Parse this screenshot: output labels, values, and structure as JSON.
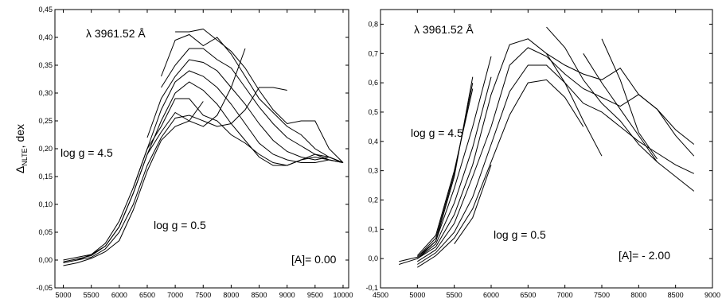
{
  "chart_data": [
    {
      "type": "line",
      "ylabel_main": "Δ",
      "ylabel_sub": "NLTE",
      "ylabel_rest": ", dex",
      "xlim": [
        4850,
        10100
      ],
      "ylim": [
        -0.05,
        0.45
      ],
      "x_ticks": [
        5000,
        5500,
        6000,
        6500,
        7000,
        7500,
        8000,
        8500,
        9000,
        9500,
        10000
      ],
      "x_tick_labels": [
        "5000",
        "5500",
        "6000",
        "6500",
        "7000",
        "7500",
        "8000",
        "8500",
        "9000",
        "9500",
        "10000"
      ],
      "y_ticks": [
        -0.05,
        0.0,
        0.05,
        0.1,
        0.15,
        0.2,
        0.25,
        0.3,
        0.35,
        0.4,
        0.45
      ],
      "y_tick_labels": [
        "-0,05",
        "0,00",
        "0,05",
        "0,10",
        "0,15",
        "0,20",
        "0,25",
        "0,30",
        "0,35",
        "0,40",
        "0,45"
      ],
      "annotations": {
        "line": "λ 3961.52 Å",
        "logg_high": "log g  = 4.5",
        "logg_low": "log g  = 0.5",
        "metallicity": "[A]= 0.00"
      },
      "series": [
        {
          "x": [
            5000,
            5250,
            5500,
            5750,
            6000,
            6250,
            6500,
            6750,
            7000,
            7250,
            7500,
            7750,
            8000,
            8250
          ],
          "y": [
            -0.01,
            -0.005,
            0.003,
            0.015,
            0.035,
            0.09,
            0.16,
            0.215,
            0.24,
            0.25,
            0.24,
            0.26,
            0.31,
            0.38
          ]
        },
        {
          "x": [
            5000,
            5250,
            5500,
            5750,
            6000,
            6250,
            6500,
            6750,
            7000,
            7250,
            7500,
            7750,
            8000,
            8250,
            8500,
            8750,
            9000
          ],
          "y": [
            -0.005,
            0.0,
            0.005,
            0.02,
            0.05,
            0.1,
            0.17,
            0.22,
            0.255,
            0.26,
            0.25,
            0.24,
            0.245,
            0.27,
            0.31,
            0.31,
            0.305
          ]
        },
        {
          "x": [
            5000,
            5250,
            5500,
            5750,
            6000,
            6250,
            6500,
            6750,
            7000,
            7250,
            7500
          ],
          "y": [
            -0.003,
            0.002,
            0.008,
            0.025,
            0.06,
            0.12,
            0.19,
            0.23,
            0.265,
            0.25,
            0.285
          ]
        },
        {
          "x": [
            5000,
            5250,
            5500,
            5750,
            6000,
            6250,
            6500,
            6750,
            7000,
            7250,
            7500,
            7750,
            8000,
            8250,
            8500,
            8750,
            9000,
            9250,
            9500,
            9750,
            10000
          ],
          "y": [
            0.0,
            0.005,
            0.01,
            0.03,
            0.07,
            0.13,
            0.2,
            0.24,
            0.29,
            0.29,
            0.26,
            0.25,
            0.225,
            0.21,
            0.19,
            0.175,
            0.17,
            0.18,
            0.185,
            0.18,
            0.175
          ]
        },
        {
          "x": [
            5250,
            5500,
            5750,
            6000,
            6250,
            6500,
            6750,
            7000,
            7250,
            7500,
            7750,
            8000,
            8250,
            8500,
            8750,
            9000,
            9250,
            9500,
            9750,
            10000
          ],
          "y": [
            0.0,
            0.01,
            0.025,
            0.06,
            0.12,
            0.19,
            0.25,
            0.3,
            0.32,
            0.305,
            0.28,
            0.245,
            0.215,
            0.185,
            0.17,
            0.17,
            0.18,
            0.19,
            0.185,
            0.175
          ]
        },
        {
          "x": [
            6250,
            6500,
            6750,
            7000,
            7250,
            7500,
            7750,
            8000,
            8250,
            8500,
            8750,
            9000,
            9250,
            9500,
            9750,
            10000
          ],
          "y": [
            0.13,
            0.2,
            0.27,
            0.32,
            0.34,
            0.33,
            0.31,
            0.28,
            0.245,
            0.21,
            0.19,
            0.18,
            0.175,
            0.175,
            0.18,
            0.175
          ]
        },
        {
          "x": [
            6500,
            6750,
            7000,
            7250,
            7500,
            7750,
            8000,
            8250,
            8500,
            8750,
            9000,
            9250,
            9500,
            9750,
            10000
          ],
          "y": [
            0.22,
            0.29,
            0.33,
            0.36,
            0.355,
            0.34,
            0.31,
            0.28,
            0.245,
            0.215,
            0.195,
            0.185,
            0.18,
            0.185,
            0.175
          ]
        },
        {
          "x": [
            6750,
            7000,
            7250,
            7500,
            7750,
            8000,
            8250,
            8500,
            8750,
            9000,
            9250,
            9500,
            9750,
            10000
          ],
          "y": [
            0.31,
            0.35,
            0.38,
            0.38,
            0.36,
            0.345,
            0.31,
            0.275,
            0.245,
            0.22,
            0.205,
            0.19,
            0.18,
            0.175
          ]
        },
        {
          "x": [
            6750,
            7000,
            7250,
            7500,
            7750,
            8000,
            8250,
            8500,
            8750,
            9000,
            9250,
            9500,
            9750,
            10000
          ],
          "y": [
            0.33,
            0.395,
            0.405,
            0.385,
            0.4,
            0.37,
            0.33,
            0.29,
            0.265,
            0.24,
            0.225,
            0.2,
            0.185,
            0.175
          ]
        },
        {
          "x": [
            7000,
            7250,
            7500,
            7750,
            8000,
            8250,
            8500,
            8750,
            9000,
            9250,
            9500,
            9750,
            10000
          ],
          "y": [
            0.41,
            0.41,
            0.415,
            0.395,
            0.375,
            0.345,
            0.305,
            0.27,
            0.245,
            0.25,
            0.25,
            0.2,
            0.175
          ]
        }
      ]
    },
    {
      "type": "line",
      "xlim": [
        4500,
        9000
      ],
      "ylim": [
        -0.1,
        0.85
      ],
      "x_ticks": [
        4500,
        5000,
        5500,
        6000,
        6500,
        7000,
        7500,
        8000,
        8500,
        9000
      ],
      "x_tick_labels": [
        "4500",
        "5000",
        "5500",
        "6000",
        "6500",
        "7000",
        "7500",
        "8000",
        "8500",
        "9000"
      ],
      "y_ticks": [
        -0.1,
        0.0,
        0.1,
        0.2,
        0.3,
        0.4,
        0.5,
        0.6,
        0.7,
        0.8
      ],
      "y_tick_labels": [
        "-0,1",
        "0,0",
        "0,1",
        "0,2",
        "0,3",
        "0,4",
        "0,5",
        "0,6",
        "0,7",
        "0,8"
      ],
      "annotations": {
        "line": "λ 3961.52 Å",
        "logg_high": "log g  = 4.5",
        "logg_low": "log g  = 0.5",
        "metallicity": "[A]= - 2.00"
      },
      "series": [
        {
          "x": [
            4750,
            5000,
            5250,
            5500,
            5750
          ],
          "y": [
            -0.02,
            0.0,
            0.06,
            0.28,
            0.62
          ]
        },
        {
          "x": [
            4750,
            5000,
            5250,
            5500,
            5750
          ],
          "y": [
            -0.01,
            0.005,
            0.07,
            0.29,
            0.6
          ]
        },
        {
          "x": [
            5000,
            5250,
            5500,
            5750
          ],
          "y": [
            0.01,
            0.08,
            0.3,
            0.58
          ]
        },
        {
          "x": [
            5000,
            5250,
            5500,
            5750,
            6000
          ],
          "y": [
            0.005,
            0.06,
            0.24,
            0.45,
            0.69
          ]
        },
        {
          "x": [
            5000,
            5250,
            5500,
            5750,
            6000
          ],
          "y": [
            0.0,
            0.05,
            0.19,
            0.38,
            0.62
          ]
        },
        {
          "x": [
            5000,
            5250,
            5500,
            5750,
            6000,
            6250,
            6500,
            6750,
            7000,
            7250,
            7500,
            7750,
            8000,
            8250,
            8500,
            8750
          ],
          "y": [
            0.0,
            0.04,
            0.15,
            0.32,
            0.56,
            0.73,
            0.75,
            0.7,
            0.66,
            0.63,
            0.61,
            0.65,
            0.56,
            0.51,
            0.44,
            0.39
          ]
        },
        {
          "x": [
            5000,
            5250,
            5500,
            5750,
            6000,
            6250,
            6500,
            6750,
            7000,
            7250,
            7500,
            7750,
            8000,
            8250,
            8500,
            8750
          ],
          "y": [
            -0.01,
            0.03,
            0.12,
            0.28,
            0.45,
            0.66,
            0.72,
            0.69,
            0.63,
            0.58,
            0.55,
            0.52,
            0.56,
            0.51,
            0.42,
            0.35
          ]
        },
        {
          "x": [
            5000,
            5250,
            5500,
            5750,
            6000,
            6250,
            6500,
            6750,
            7000,
            7250,
            7500,
            7750,
            8000,
            8250,
            8500,
            8750
          ],
          "y": [
            -0.02,
            0.02,
            0.09,
            0.21,
            0.39,
            0.57,
            0.66,
            0.66,
            0.6,
            0.53,
            0.5,
            0.45,
            0.4,
            0.36,
            0.32,
            0.29
          ]
        },
        {
          "x": [
            5000,
            5250,
            5500,
            5750,
            6000,
            6250,
            6500,
            6750,
            7000,
            7250
          ],
          "y": [
            -0.03,
            0.01,
            0.07,
            0.17,
            0.33,
            0.49,
            0.6,
            0.61,
            0.55,
            0.45
          ]
        },
        {
          "x": [
            5500,
            5750,
            6000
          ],
          "y": [
            0.05,
            0.14,
            0.32
          ]
        },
        {
          "x": [
            6750,
            7000,
            7250,
            7500,
            7750,
            8000,
            8250,
            8500,
            8750
          ],
          "y": [
            0.79,
            0.72,
            0.61,
            0.53,
            0.47,
            0.39,
            0.33,
            0.28,
            0.23
          ]
        },
        {
          "x": [
            7250,
            7500,
            7750,
            8000,
            8250
          ],
          "y": [
            0.7,
            0.6,
            0.51,
            0.42,
            0.33
          ]
        },
        {
          "x": [
            6750,
            7000,
            7250,
            7500
          ],
          "y": [
            0.7,
            0.6,
            0.47,
            0.35
          ]
        },
        {
          "x": [
            7500,
            7750,
            8000,
            8250
          ],
          "y": [
            0.75,
            0.61,
            0.43,
            0.34
          ]
        }
      ]
    }
  ]
}
